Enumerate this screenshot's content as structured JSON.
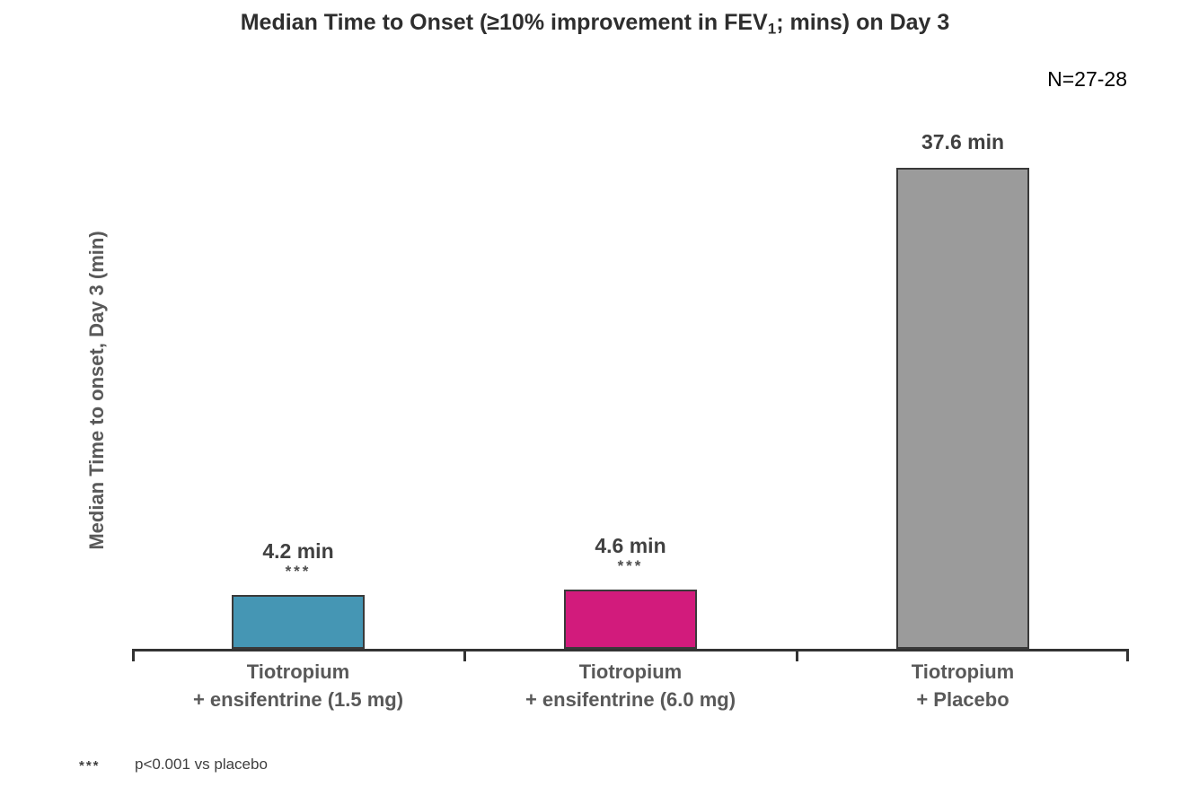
{
  "title": {
    "pre": "Median Time to Onset (≥10% improvement in FEV",
    "sub": "1",
    "post": "; mins) on Day 3"
  },
  "n_annotation": "N=27-28",
  "y_axis_label": "Median Time to onset, Day 3 (min)",
  "footnote": {
    "symbol": "***",
    "text": "p<0.001 vs placebo"
  },
  "colors": {
    "bar_1": "#4596B4",
    "bar_2": "#D21B7C",
    "bar_3": "#9B9B9B",
    "bar_border": "#3a3a3a",
    "axis": "#333333",
    "label_text": "#595959",
    "value_text": "#404040"
  },
  "chart_data": {
    "type": "bar",
    "title": "Median Time to Onset (≥10% improvement in FEV1; mins) on Day 3",
    "xlabel": "",
    "ylabel": "Median Time to onset, Day 3 (min)",
    "ylim": [
      0,
      40
    ],
    "grid": false,
    "legend": "none",
    "categories": [
      "Tiotropium + ensifentrine (1.5 mg)",
      "Tiotropium + ensifentrine (6.0 mg)",
      "Tiotropium + Placebo"
    ],
    "values": [
      4.2,
      4.6,
      37.6
    ],
    "bars": [
      {
        "label_lines": [
          "Tiotropium",
          "+ ensifentrine (1.5 mg)"
        ],
        "value": 4.2,
        "value_label": "4.2 min",
        "significance": "***",
        "color": "#4596B4"
      },
      {
        "label_lines": [
          "Tiotropium",
          "+ ensifentrine (6.0 mg)"
        ],
        "value": 4.6,
        "value_label": "4.6 min",
        "significance": "***",
        "color": "#D21B7C"
      },
      {
        "label_lines": [
          "Tiotropium",
          "+ Placebo"
        ],
        "value": 37.6,
        "value_label": "37.6 min",
        "significance": "",
        "color": "#9B9B9B"
      }
    ],
    "annotations": [
      "N=27-28",
      "*** p<0.001 vs placebo"
    ]
  }
}
